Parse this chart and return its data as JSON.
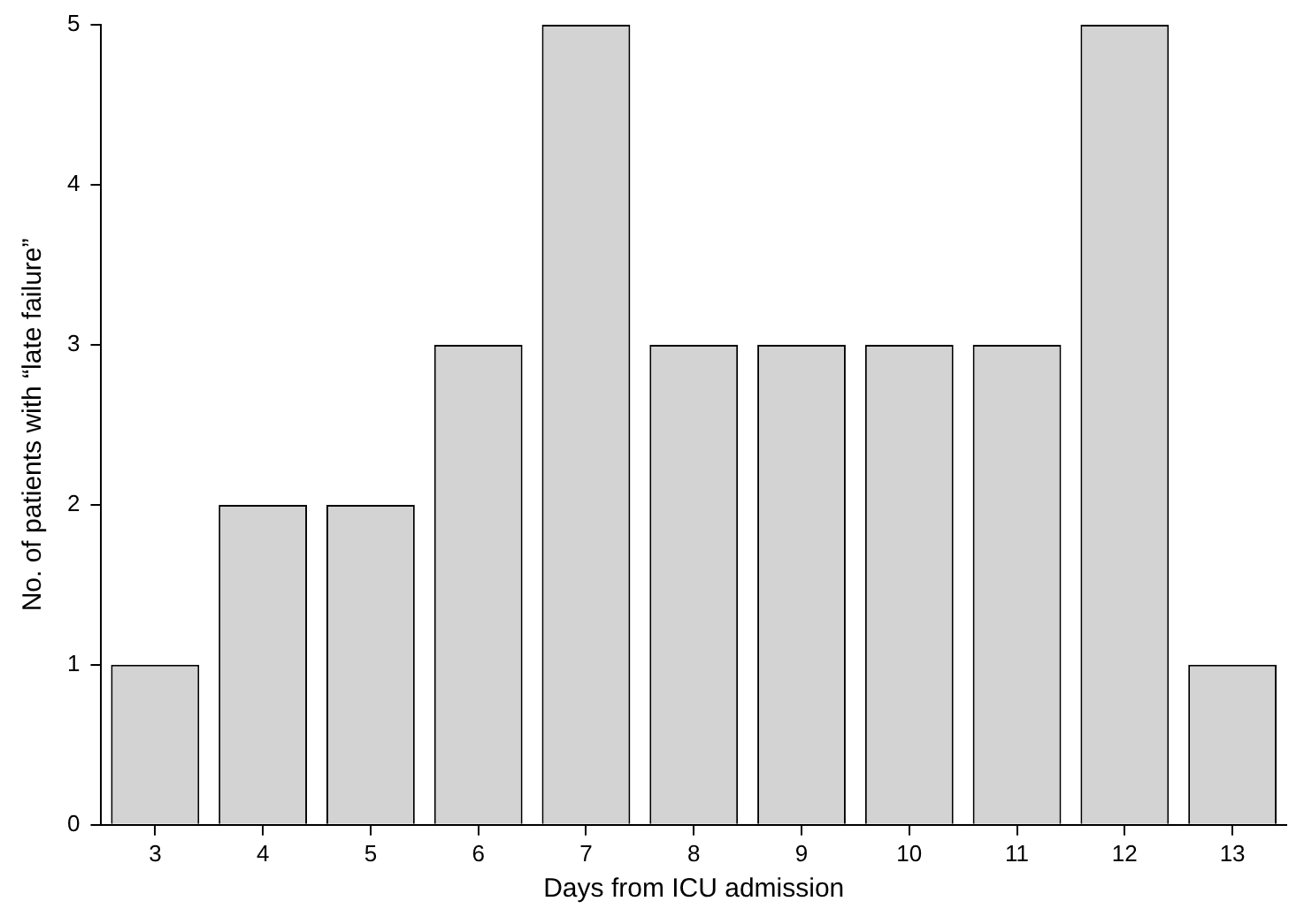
{
  "chart_data": {
    "type": "bar",
    "xlabel": "Days from ICU admission",
    "ylabel": "No. of patients with “late failure”",
    "categories": [
      "3",
      "4",
      "5",
      "6",
      "7",
      "8",
      "9",
      "10",
      "11",
      "12",
      "13"
    ],
    "values": [
      1,
      2,
      2,
      3,
      5,
      3,
      3,
      3,
      3,
      5,
      1
    ],
    "color": "#d3d3d3",
    "ylim": [
      0,
      5
    ],
    "yticks": [
      0,
      1,
      2,
      3,
      4,
      5
    ],
    "grid": false,
    "legend": false
  }
}
